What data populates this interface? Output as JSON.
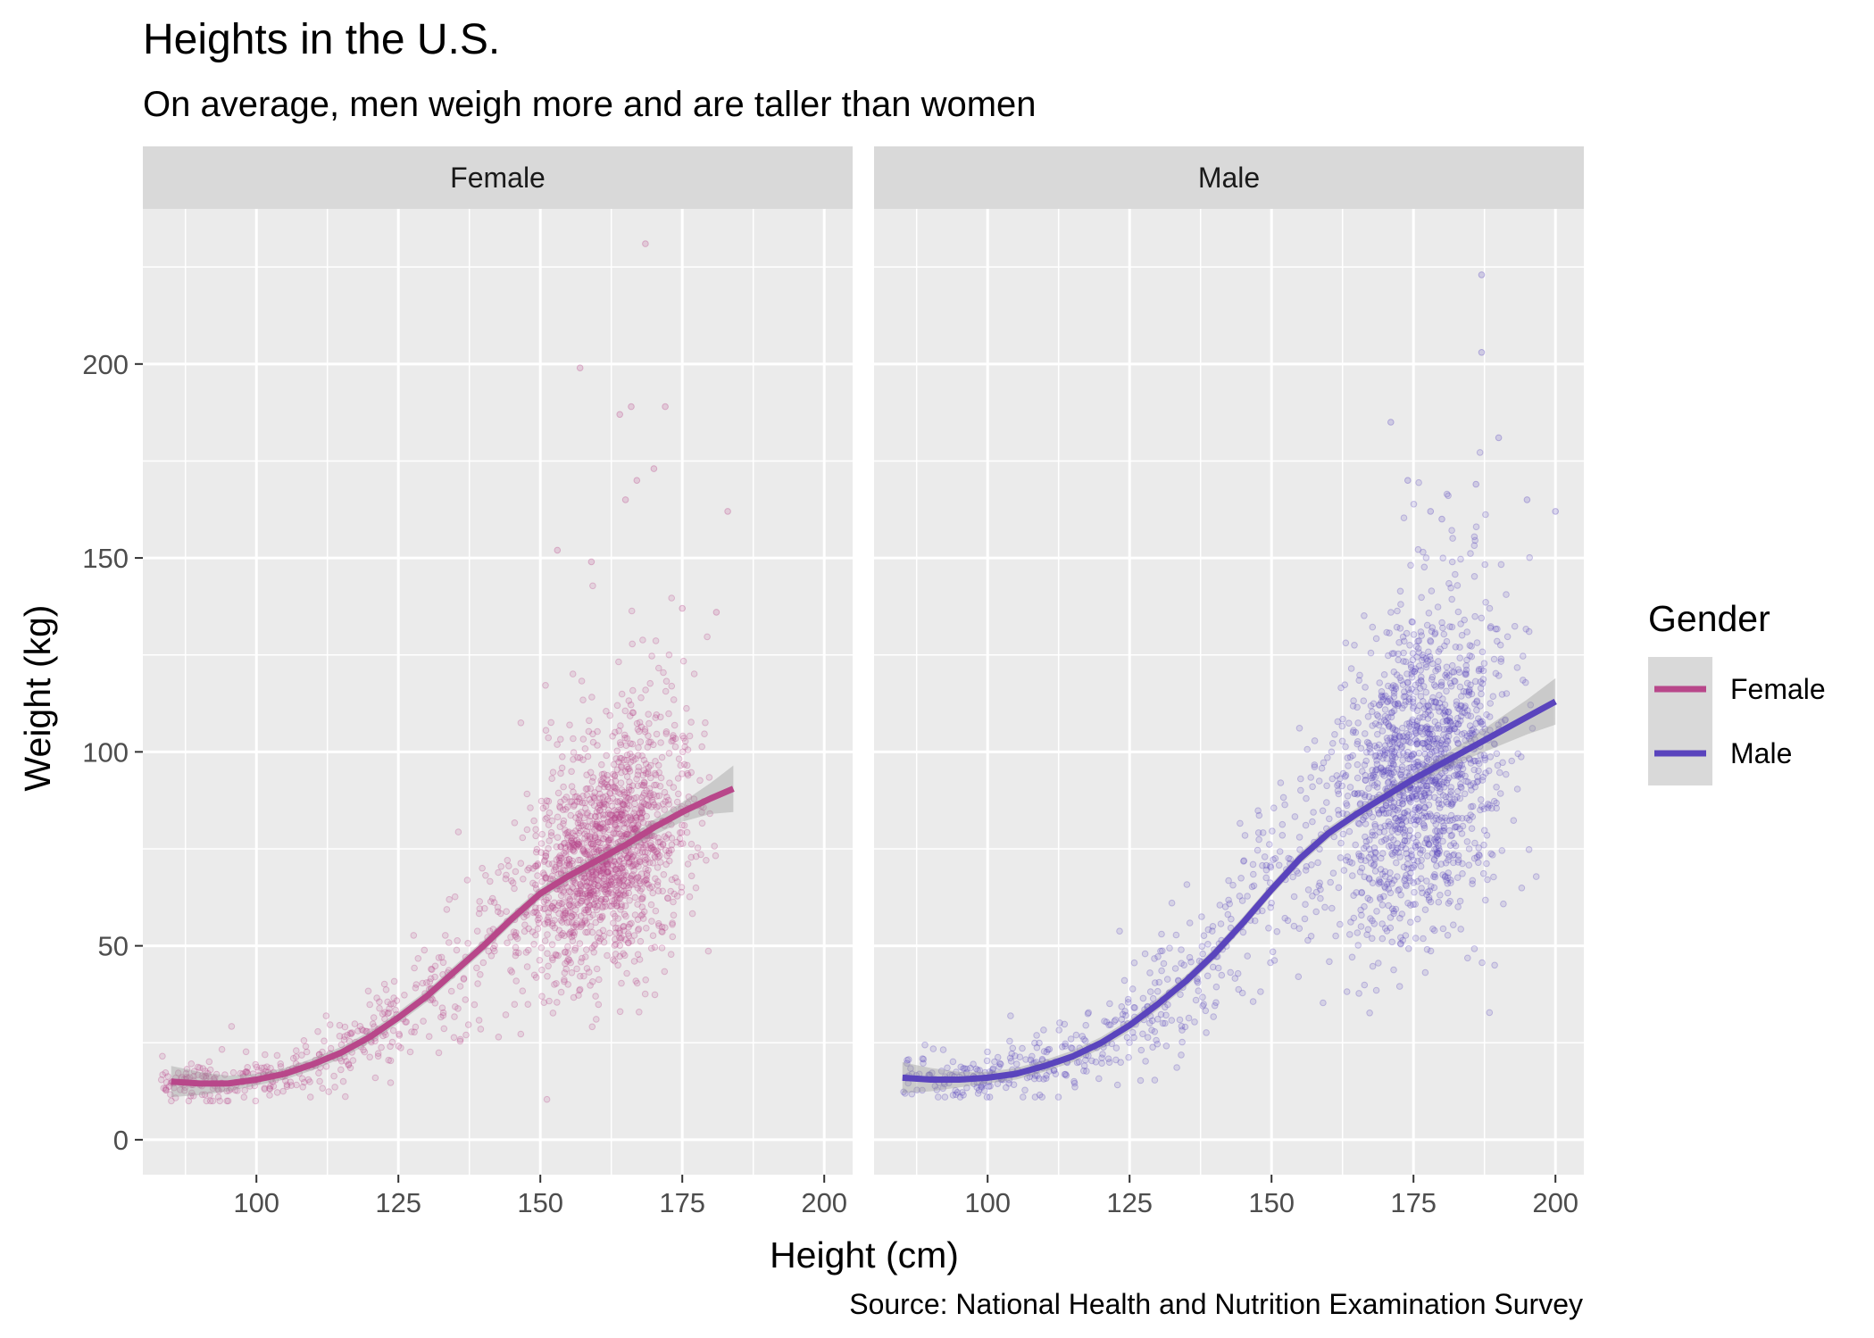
{
  "chart_data": {
    "type": "scatter",
    "title": "Heights in the U.S.",
    "subtitle": "On average, men weigh more and are taller than women",
    "caption": "Source: National Health and Nutrition Examination Survey",
    "xlabel": "Height (cm)",
    "ylabel": "Weight (kg)",
    "xlim": [
      80,
      205
    ],
    "ylim": [
      -9,
      240
    ],
    "x_ticks": [
      100,
      125,
      150,
      175,
      200
    ],
    "y_ticks": [
      0,
      50,
      100,
      150,
      200
    ],
    "grid": true,
    "legend": {
      "title": "Gender",
      "position": "right",
      "entries": [
        {
          "label": "Female",
          "color": "#b8478a"
        },
        {
          "label": "Male",
          "color": "#5a44bd"
        }
      ]
    },
    "facets": [
      {
        "label": "Female",
        "color": "#b8478a",
        "smooth": {
          "x": [
            85,
            90,
            95,
            100,
            105,
            110,
            115,
            120,
            125,
            130,
            135,
            140,
            145,
            150,
            155,
            160,
            165,
            170,
            175,
            180,
            184
          ],
          "y": [
            15,
            14.5,
            14.5,
            15.5,
            17,
            19.5,
            22.5,
            26.5,
            31.5,
            37,
            43.5,
            50,
            57,
            63.5,
            68,
            72,
            76,
            80.5,
            84.5,
            88,
            90.5
          ],
          "se": [
            4,
            3,
            2,
            1.5,
            1.5,
            1.5,
            1.5,
            1.5,
            1.5,
            1.5,
            1.5,
            1.5,
            1.5,
            1.5,
            1.5,
            1.5,
            1.5,
            2,
            2.5,
            4,
            6
          ]
        },
        "points": {
          "count": 1900,
          "x_range": [
            83,
            185
          ],
          "y_range": [
            10,
            231
          ],
          "outliers": [
            [
              168.5,
              231
            ],
            [
              157,
              199
            ],
            [
              166,
              189
            ],
            [
              164,
              187
            ],
            [
              172,
              189
            ],
            [
              170,
              173
            ],
            [
              167,
              170
            ],
            [
              165,
              165
            ],
            [
              183,
              162
            ],
            [
              153,
              152
            ],
            [
              175,
              137
            ],
            [
              181,
              136
            ],
            [
              159,
              149
            ]
          ]
        }
      },
      {
        "label": "Male",
        "color": "#5a44bd",
        "smooth": {
          "x": [
            85,
            90,
            95,
            100,
            105,
            110,
            115,
            120,
            125,
            130,
            135,
            140,
            145,
            150,
            155,
            160,
            165,
            170,
            175,
            180,
            185,
            190,
            195,
            200
          ],
          "y": [
            16,
            15.5,
            15.5,
            16,
            17,
            19,
            21.5,
            25,
            29.5,
            35,
            41,
            48,
            56,
            64.5,
            72.5,
            79,
            84,
            88.5,
            93,
            97,
            101,
            105,
            109,
            113
          ],
          "se": [
            4,
            3,
            2,
            1.5,
            1.5,
            1.5,
            1.5,
            1.5,
            1.5,
            1.5,
            1.5,
            1.5,
            1.5,
            1.5,
            1.5,
            1.5,
            1.5,
            1.5,
            1.5,
            2,
            2.5,
            3.5,
            4.5,
            6
          ]
        },
        "points": {
          "count": 1900,
          "x_range": [
            85,
            200
          ],
          "y_range": [
            11,
            223
          ],
          "outliers": [
            [
              187,
              223
            ],
            [
              187,
              203
            ],
            [
              190,
              181
            ],
            [
              171,
              185
            ],
            [
              186,
              169
            ],
            [
              174,
              170
            ],
            [
              200,
              162
            ],
            [
              195,
              165
            ],
            [
              180,
              160
            ],
            [
              178,
              162
            ]
          ]
        }
      }
    ]
  }
}
